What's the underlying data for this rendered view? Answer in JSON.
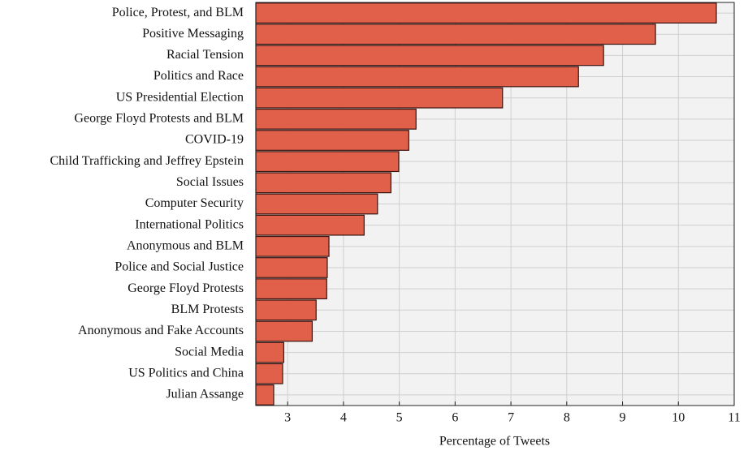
{
  "chart_data": {
    "type": "barh",
    "xlabel": "Percentage of Tweets",
    "categories": [
      "Police, Protest, and BLM",
      "Positive Messaging",
      "Racial Tension",
      "Politics and Race",
      "US Presidential Election",
      "George Floyd Protests and BLM",
      "COVID-19",
      "Child Trafficking and Jeffrey Epstein",
      "Social Issues",
      "Computer Security",
      "International Politics",
      "Anonymous and BLM",
      "Police and Social Justice",
      "George Floyd Protests",
      "BLM Protests",
      "Anonymous and Fake Accounts",
      "Social Media",
      "US Politics and China",
      "Julian Assange"
    ],
    "values": [
      10.68,
      9.59,
      8.66,
      8.21,
      6.85,
      5.3,
      5.17,
      4.99,
      4.85,
      4.61,
      4.37,
      3.74,
      3.71,
      3.7,
      3.51,
      3.44,
      2.93,
      2.91,
      2.75
    ],
    "color": "#e0604a",
    "xlim": [
      2.43,
      11
    ],
    "xticks": [
      3,
      4,
      5,
      6,
      7,
      8,
      9,
      10,
      11
    ],
    "grid": true
  }
}
